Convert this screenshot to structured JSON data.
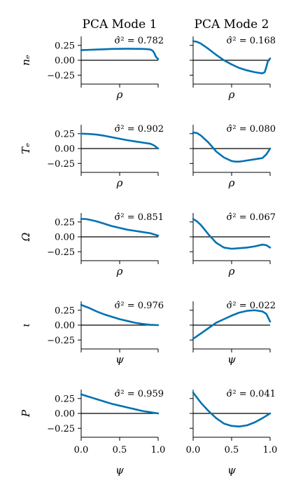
{
  "columns": [
    "PCA Mode 1",
    "PCA Mode 2"
  ],
  "colors": {
    "curve": "#0072B2",
    "axes": "#000000"
  },
  "chart_data": {
    "type": "line",
    "layout": "5x2 small multiples",
    "ylim": [
      -0.4,
      0.4
    ],
    "yticks": [
      0.25,
      0.0,
      -0.25
    ],
    "ytick_labels": [
      "0.25",
      "0.00",
      "−0.25"
    ],
    "xlim": [
      0.0,
      1.0
    ],
    "xticks": [
      0.0,
      0.5,
      1.0
    ],
    "xtick_labels": [
      "0.0",
      "0.5",
      "1.0"
    ],
    "annotation_prefix": "σ̂² = ",
    "rows": [
      {
        "ylabel": "nₑ",
        "xlabel": "ρ",
        "panels": [
          {
            "variance": "0.782",
            "x": [
              0,
              0.1,
              0.2,
              0.3,
              0.4,
              0.5,
              0.6,
              0.7,
              0.8,
              0.85,
              0.9,
              0.93,
              0.95,
              0.97,
              1.0
            ],
            "y": [
              0.17,
              0.175,
              0.18,
              0.185,
              0.19,
              0.192,
              0.193,
              0.192,
              0.19,
              0.187,
              0.18,
              0.16,
              0.12,
              0.06,
              0.02
            ]
          },
          {
            "variance": "0.168",
            "x": [
              0,
              0.05,
              0.1,
              0.2,
              0.3,
              0.4,
              0.5,
              0.6,
              0.7,
              0.8,
              0.85,
              0.9,
              0.93,
              0.95,
              0.97,
              1.0
            ],
            "y": [
              0.32,
              0.31,
              0.28,
              0.19,
              0.09,
              0.0,
              -0.07,
              -0.13,
              -0.17,
              -0.2,
              -0.21,
              -0.22,
              -0.2,
              -0.12,
              -0.02,
              0.03
            ]
          }
        ]
      },
      {
        "ylabel": "Tₑ",
        "xlabel": "ρ",
        "panels": [
          {
            "variance": "0.902",
            "x": [
              0,
              0.1,
              0.2,
              0.3,
              0.4,
              0.5,
              0.6,
              0.7,
              0.8,
              0.9,
              0.95,
              1.0
            ],
            "y": [
              0.25,
              0.245,
              0.235,
              0.215,
              0.19,
              0.165,
              0.14,
              0.12,
              0.1,
              0.08,
              0.05,
              0.0
            ]
          },
          {
            "variance": "0.080",
            "x": [
              0,
              0.05,
              0.1,
              0.2,
              0.3,
              0.4,
              0.5,
              0.55,
              0.6,
              0.65,
              0.7,
              0.8,
              0.85,
              0.9,
              0.95,
              1.0
            ],
            "y": [
              0.27,
              0.26,
              0.22,
              0.1,
              -0.05,
              -0.15,
              -0.21,
              -0.22,
              -0.22,
              -0.21,
              -0.2,
              -0.18,
              -0.17,
              -0.16,
              -0.1,
              0.0
            ]
          }
        ]
      },
      {
        "ylabel": "Ω",
        "xlabel": "ρ",
        "panels": [
          {
            "variance": "0.851",
            "x": [
              0,
              0.05,
              0.1,
              0.2,
              0.3,
              0.4,
              0.5,
              0.6,
              0.7,
              0.8,
              0.9,
              0.95,
              1.0
            ],
            "y": [
              0.3,
              0.3,
              0.29,
              0.26,
              0.22,
              0.18,
              0.15,
              0.12,
              0.1,
              0.08,
              0.06,
              0.04,
              0.02
            ]
          },
          {
            "variance": "0.067",
            "x": [
              0,
              0.05,
              0.1,
              0.2,
              0.3,
              0.4,
              0.5,
              0.6,
              0.7,
              0.8,
              0.9,
              0.95,
              1.0
            ],
            "y": [
              0.3,
              0.26,
              0.2,
              0.04,
              -0.1,
              -0.18,
              -0.2,
              -0.19,
              -0.18,
              -0.16,
              -0.13,
              -0.14,
              -0.18
            ]
          }
        ]
      },
      {
        "ylabel": "ι",
        "xlabel": "ψ",
        "panels": [
          {
            "variance": "0.976",
            "x": [
              0,
              0.1,
              0.2,
              0.3,
              0.4,
              0.5,
              0.6,
              0.7,
              0.8,
              0.9,
              1.0
            ],
            "y": [
              0.34,
              0.29,
              0.23,
              0.18,
              0.14,
              0.1,
              0.07,
              0.04,
              0.02,
              0.005,
              0.0
            ]
          },
          {
            "variance": "0.022",
            "x": [
              0,
              0.1,
              0.2,
              0.3,
              0.4,
              0.5,
              0.6,
              0.7,
              0.8,
              0.9,
              0.95,
              1.0
            ],
            "y": [
              -0.23,
              -0.14,
              -0.05,
              0.04,
              0.1,
              0.16,
              0.21,
              0.24,
              0.25,
              0.23,
              0.19,
              0.06
            ]
          }
        ]
      },
      {
        "ylabel": "P",
        "xlabel": "ψ",
        "panels": [
          {
            "variance": "0.959",
            "x": [
              0,
              0.1,
              0.2,
              0.3,
              0.4,
              0.5,
              0.6,
              0.7,
              0.8,
              0.9,
              1.0
            ],
            "y": [
              0.32,
              0.28,
              0.24,
              0.2,
              0.16,
              0.13,
              0.1,
              0.07,
              0.04,
              0.02,
              0.0
            ]
          },
          {
            "variance": "0.041",
            "x": [
              0,
              0.1,
              0.2,
              0.3,
              0.4,
              0.5,
              0.6,
              0.7,
              0.8,
              0.9,
              1.0
            ],
            "y": [
              0.35,
              0.18,
              0.04,
              -0.08,
              -0.17,
              -0.21,
              -0.22,
              -0.2,
              -0.15,
              -0.08,
              0.0
            ]
          }
        ]
      }
    ]
  }
}
